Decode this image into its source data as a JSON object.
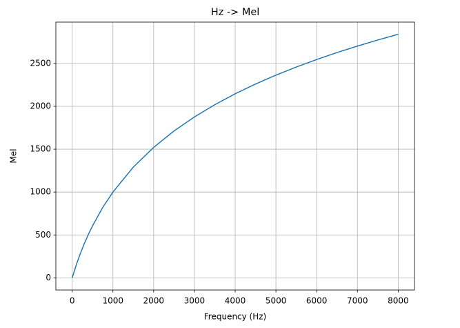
{
  "chart_data": {
    "type": "line",
    "title": "Hz -> Mel",
    "x_label": "Frequency (Hz)",
    "y_label": "Mel",
    "x": [
      0,
      100,
      200,
      300,
      400,
      500,
      750,
      1000,
      1500,
      2000,
      2500,
      3000,
      3500,
      4000,
      4500,
      5000,
      5500,
      6000,
      6500,
      7000,
      7500,
      8000
    ],
    "series": [
      {
        "name": "Mel",
        "color": "#1f77b4",
        "values": [
          0,
          150,
          283,
          402,
          509,
          607,
          821,
          1000,
          1291,
          1521,
          1713,
          1876,
          2019,
          2146,
          2260,
          2364,
          2458,
          2546,
          2627,
          2702,
          2773,
          2840
        ]
      }
    ],
    "xlim": [
      -400,
      8400
    ],
    "ylim": [
      -142,
      2982
    ],
    "xticks": [
      0,
      1000,
      2000,
      3000,
      4000,
      5000,
      6000,
      7000,
      8000
    ],
    "yticks": [
      0,
      500,
      1000,
      1500,
      2000,
      2500
    ],
    "grid": true
  }
}
